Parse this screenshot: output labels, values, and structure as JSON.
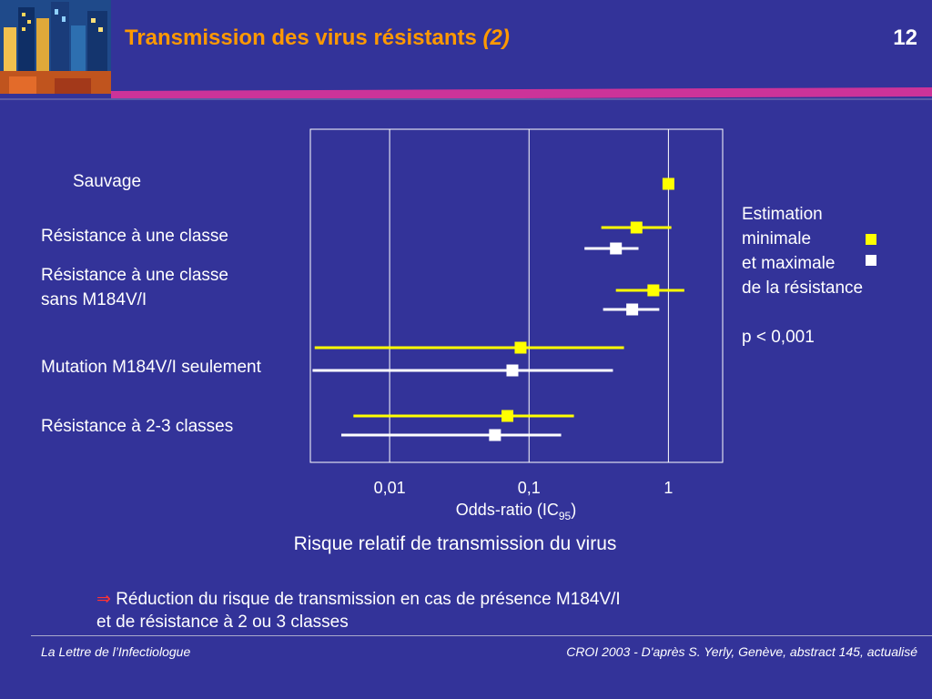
{
  "header": {
    "title": "Transmission des virus résistants",
    "title_paren": "(2)",
    "slide_number": "12"
  },
  "chart_data": {
    "type": "forest",
    "x_scale": "log",
    "xlim": [
      0.0027,
      2.45
    ],
    "xticks": [
      {
        "value": 0.01,
        "label": "0,01"
      },
      {
        "value": 0.1,
        "label": "0,1"
      },
      {
        "value": 1,
        "label": "1"
      }
    ],
    "vertical_gridlines_at": [
      0.01,
      0.1,
      1
    ],
    "xlabel": "Odds-ratio (IC",
    "xlabel_sub": "95",
    "xlabel_close": ")",
    "rows": [
      {
        "label": "Sauvage",
        "min": {
          "or": 1.0
        }
      },
      {
        "label": "Résistance à une classe",
        "min": {
          "or": 0.59,
          "ci": [
            0.33,
            1.05
          ]
        },
        "max": {
          "or": 0.42,
          "ci": [
            0.25,
            0.61
          ]
        }
      },
      {
        "label": "Résistance à une classe\nsans M184V/I",
        "min": {
          "or": 0.78,
          "ci": [
            0.42,
            1.3
          ]
        },
        "max": {
          "or": 0.55,
          "ci": [
            0.34,
            0.86
          ]
        }
      },
      {
        "label": "Mutation M184V/I seulement",
        "min": {
          "or": 0.087,
          "ci": [
            0.0029,
            0.48
          ]
        },
        "max": {
          "or": 0.076,
          "ci": [
            0.0028,
            0.4
          ]
        }
      },
      {
        "label": "Résistance à 2-3 classes",
        "min": {
          "or": 0.07,
          "ci": [
            0.0055,
            0.21
          ]
        },
        "max": {
          "or": 0.057,
          "ci": [
            0.0045,
            0.17
          ]
        }
      }
    ],
    "series_colors": {
      "min": "#ffff00",
      "max": "#ffffff"
    }
  },
  "legend": {
    "lines": [
      "Estimation",
      "minimale",
      "et maximale",
      "de la résistance"
    ],
    "min_color": "#ffff00",
    "max_color": "#ffffff"
  },
  "pvalue": "p < 0,001",
  "caption": "Risque relatif de transmission du virus",
  "conclusion": {
    "arrow": "⇒",
    "line1": "Réduction du risque de transmission en cas de présence M184V/I",
    "line2": "et de résistance à 2 ou 3 classes"
  },
  "footer": {
    "left": "La Lettre de l’Infectiologue",
    "right": "CROI 2003 - D'après S. Yerly, Genève, abstract 145, actualisé"
  },
  "colors": {
    "background": "#333399",
    "title": "#ff9900",
    "accent_rule": "#cc3399"
  }
}
